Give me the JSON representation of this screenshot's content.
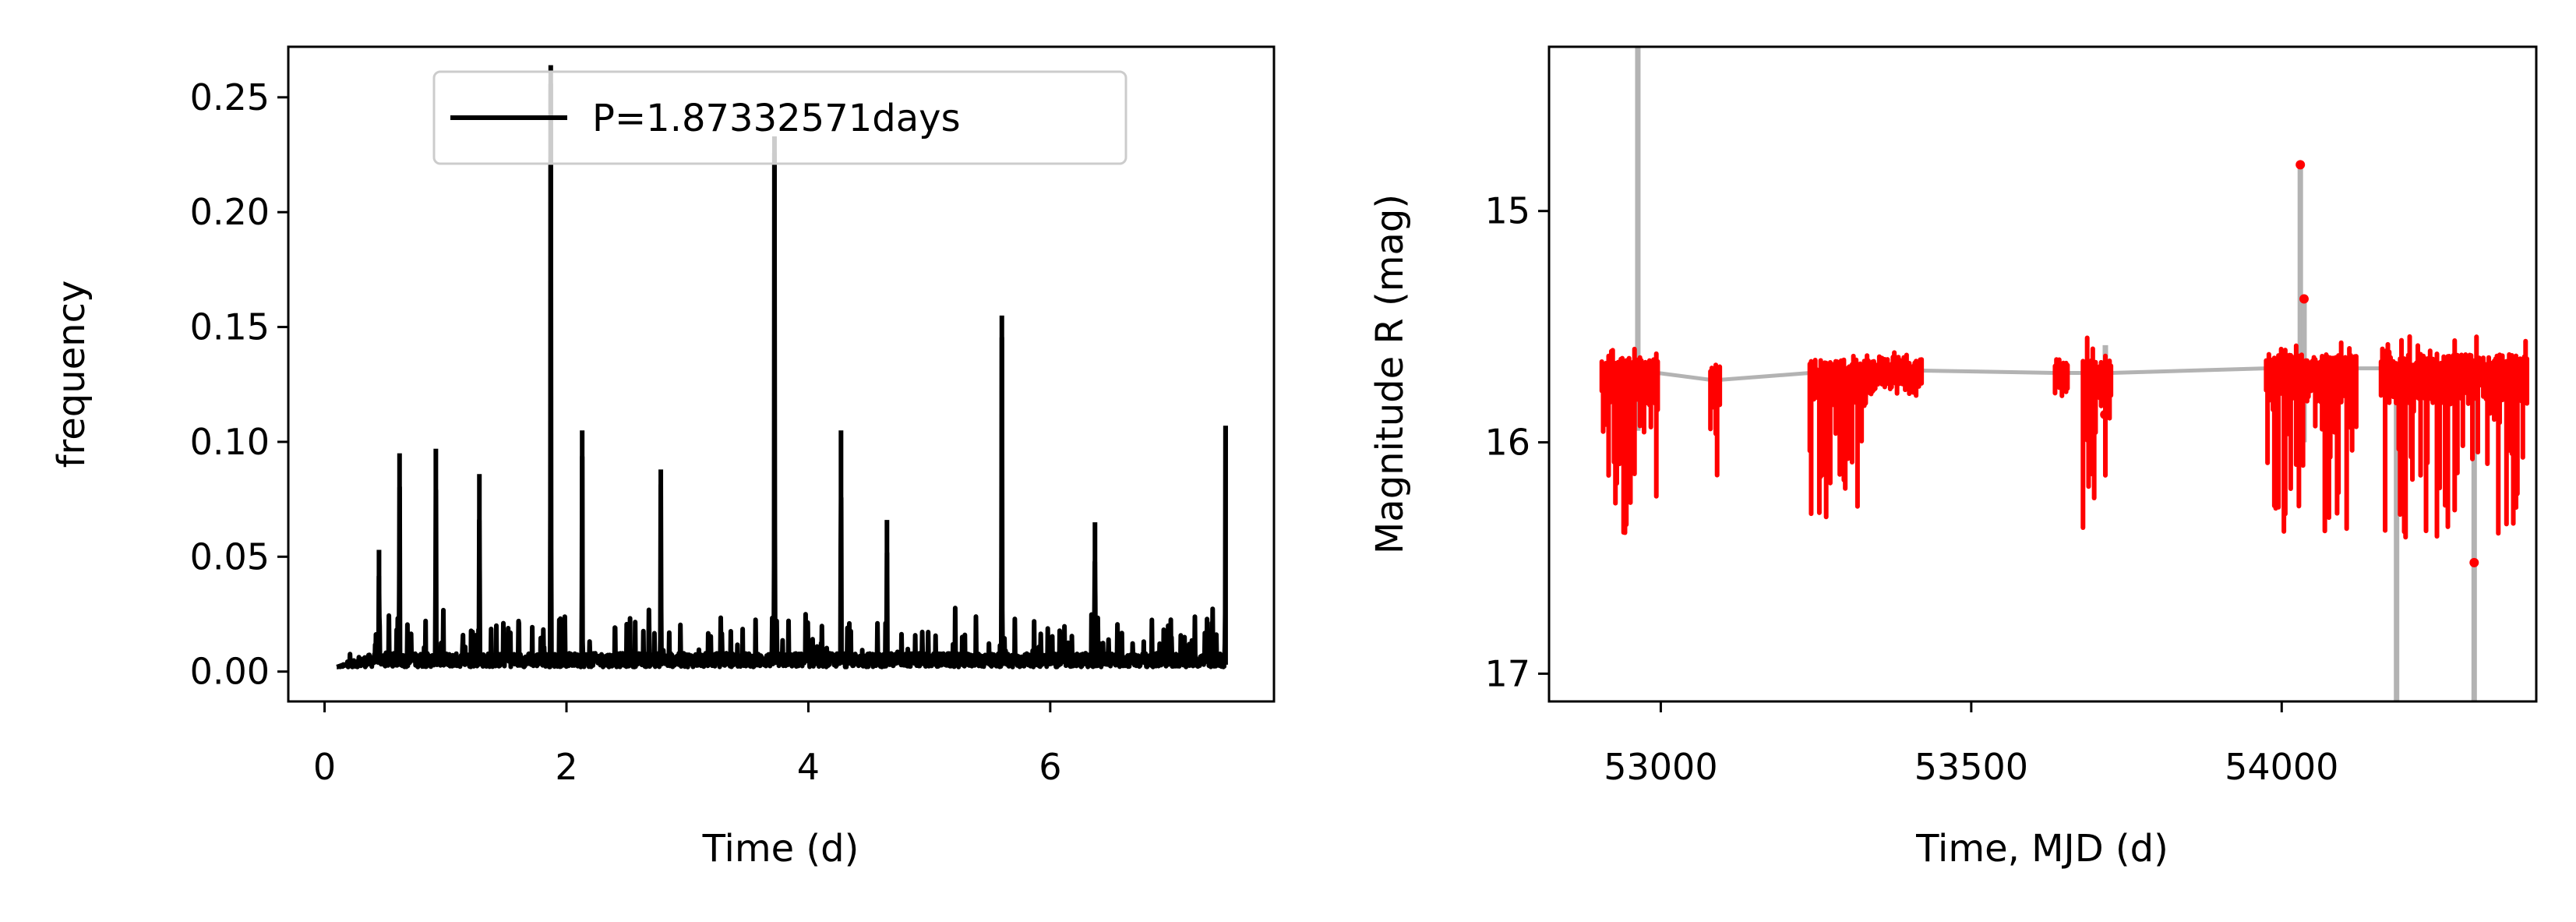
{
  "chart_data": [
    {
      "type": "line",
      "title": "",
      "xlabel": "Time (d)",
      "ylabel": "frequency",
      "xlim": [
        -0.3,
        7.85
      ],
      "ylim": [
        -0.013,
        0.272
      ],
      "xticks": [
        0,
        2,
        4,
        6
      ],
      "yticks": [
        0.0,
        0.05,
        0.1,
        0.15,
        0.2,
        0.25
      ],
      "xtick_labels": [
        "0",
        "2",
        "4",
        "6"
      ],
      "ytick_labels": [
        "0.00",
        "0.05",
        "0.10",
        "0.15",
        "0.20",
        "0.25"
      ],
      "legend": {
        "placement": "top-center",
        "entries": [
          "P=1.87332571days"
        ]
      },
      "grid": false,
      "series": [
        {
          "name": "P=1.87332571days",
          "color": "#000000",
          "x_range": [
            0.1,
            7.45
          ],
          "peaks": [
            [
              0.45,
              0.053
            ],
            [
              0.62,
              0.095
            ],
            [
              0.92,
              0.097
            ],
            [
              1.28,
              0.086
            ],
            [
              1.87,
              0.264
            ],
            [
              2.13,
              0.105
            ],
            [
              2.78,
              0.088
            ],
            [
              3.72,
              0.233
            ],
            [
              4.27,
              0.105
            ],
            [
              4.65,
              0.066
            ],
            [
              5.6,
              0.155
            ],
            [
              6.37,
              0.065
            ],
            [
              7.45,
              0.107
            ]
          ]
        }
      ]
    },
    {
      "type": "scatter",
      "title": "",
      "xlabel": "Time, MJD (d)",
      "ylabel": "Magnitude R (mag)",
      "xlim": [
        52820,
        54410
      ],
      "ylim": [
        17.12,
        14.29
      ],
      "y_inverted": true,
      "xticks": [
        53000,
        53500,
        54000
      ],
      "yticks": [
        15,
        16,
        17
      ],
      "xtick_labels": [
        "53000",
        "53500",
        "54000"
      ],
      "ytick_labels": [
        "15",
        "16",
        "17"
      ],
      "grid": false,
      "series": [
        {
          "name": "",
          "marker_color": "#ff0000",
          "line_color": "#b3b3b3",
          "clusters": [
            {
              "x_range": [
                52905,
                52995
              ],
              "mag_range": [
                15.62,
                16.35
              ],
              "base": 15.7
            },
            {
              "x_range": [
                53080,
                53095
              ],
              "mag_range": [
                15.68,
                16.2
              ],
              "base": 15.73
            },
            {
              "x_range": [
                53240,
                53330
              ],
              "mag_range": [
                15.65,
                16.32
              ],
              "base": 15.7
            },
            {
              "x_range": [
                53330,
                53420
              ],
              "mag_range": [
                15.65,
                15.75
              ],
              "base": 15.69
            },
            {
              "x_range": [
                53635,
                53655
              ],
              "mag_range": [
                15.65,
                15.75
              ],
              "base": 15.7
            },
            {
              "x_range": [
                53680,
                53725
              ],
              "mag_range": [
                15.58,
                16.35
              ],
              "base": 15.7
            },
            {
              "x_range": [
                53975,
                54120
              ],
              "mag_range": [
                15.62,
                16.35
              ],
              "base": 15.68
            },
            {
              "x_range": [
                54160,
                54395
              ],
              "mag_range": [
                15.6,
                16.38
              ],
              "base": 15.68
            }
          ],
          "outliers": [
            [
              54030,
              14.8
            ],
            [
              54036,
              15.38
            ],
            [
              54310,
              16.52
            ],
            [
              53715,
              15.88
            ]
          ],
          "errorbars": [
            [
              52963,
              14.29,
              15.95
            ],
            [
              54030,
              14.8,
              15.7
            ],
            [
              54036,
              15.38,
              16.0
            ],
            [
              54185,
              15.7,
              17.12
            ],
            [
              54310,
              15.7,
              17.12
            ],
            [
              53716,
              15.58,
              15.82
            ]
          ]
        }
      ]
    }
  ]
}
